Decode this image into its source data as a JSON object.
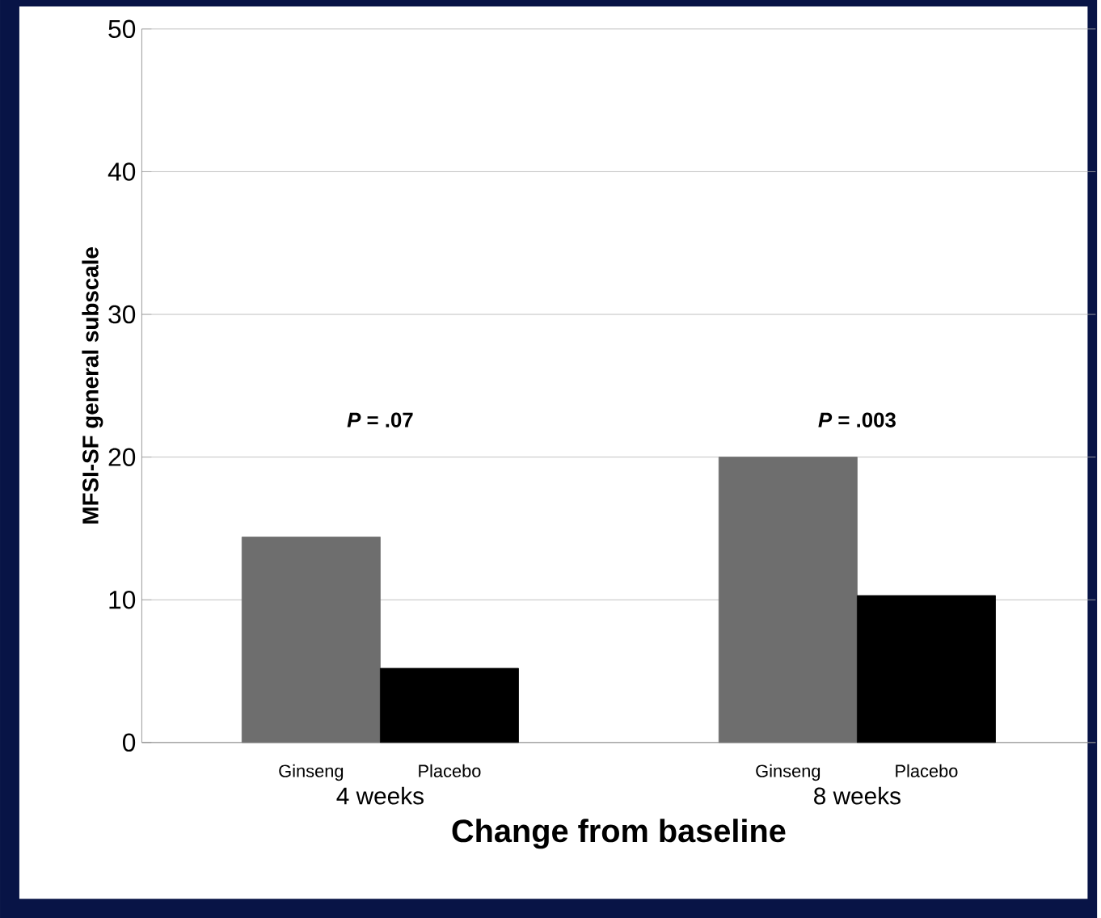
{
  "chart_data": {
    "type": "bar",
    "xlabel": "Change from baseline",
    "ylabel": "MFSI-SF general subscale",
    "categories": [
      "4 weeks",
      "8 weeks"
    ],
    "series": [
      {
        "name": "Ginseng",
        "color": "#6e6e6e",
        "values": [
          14.4,
          20.0
        ]
      },
      {
        "name": "Placebo",
        "color": "#000000",
        "values": [
          5.2,
          10.3
        ]
      }
    ],
    "ylim": [
      0,
      50
    ],
    "yticks": [
      0,
      10,
      20,
      30,
      40,
      50
    ],
    "grid": "y",
    "annotations": [
      "*P* = .07",
      "*P* = .003"
    ]
  }
}
